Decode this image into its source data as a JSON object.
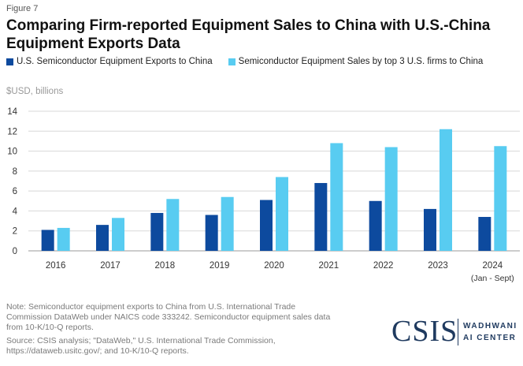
{
  "figure_label": "Figure 7",
  "title": "Comparing Firm-reported Equipment Sales to China with U.S.-China Equipment Exports Data",
  "colors": {
    "series1": "#0d4a9e",
    "series2": "#58ccf1",
    "grid": "#d8d8d8",
    "axis_text": "#333333"
  },
  "chart_data": {
    "type": "bar",
    "title": "Comparing Firm-reported Equipment Sales to China with U.S.-China Equipment Exports Data",
    "ylabel": "$USD, billions",
    "xlabel": "",
    "ylim": [
      0,
      14
    ],
    "yticks": [
      0,
      2,
      4,
      6,
      8,
      10,
      12,
      14
    ],
    "grid": true,
    "legend_position": "top",
    "categories": [
      "2016",
      "2017",
      "2018",
      "2019",
      "2020",
      "2021",
      "2022",
      "2023",
      "2024"
    ],
    "category_sublabels": [
      "",
      "",
      "",
      "",
      "",
      "",
      "",
      "",
      "(Jan - Sept)"
    ],
    "series": [
      {
        "name": "U.S. Semiconductor Equipment Exports to China",
        "values": [
          2.1,
          2.6,
          3.8,
          3.6,
          5.1,
          6.8,
          5.0,
          4.2,
          3.4
        ]
      },
      {
        "name": "Semiconductor Equipment Sales by top 3 U.S. firms to China",
        "values": [
          2.3,
          3.3,
          5.2,
          5.4,
          7.4,
          10.8,
          10.4,
          12.2,
          10.5
        ]
      }
    ]
  },
  "notes": {
    "note": "Note: Semiconductor equipment exports to China from U.S. International Trade Commission DataWeb under NAICS code 333242. Semiconductor equipment sales data from 10-K/10-Q reports.",
    "source": "Source: CSIS analysis; \"DataWeb,\" U.S. International Trade Commission, https://dataweb.usitc.gov/; and 10-K/10-Q reports."
  },
  "logo": {
    "org": "CSIS",
    "center_line1": "WADHWANI",
    "center_line2": "AI CENTER"
  }
}
